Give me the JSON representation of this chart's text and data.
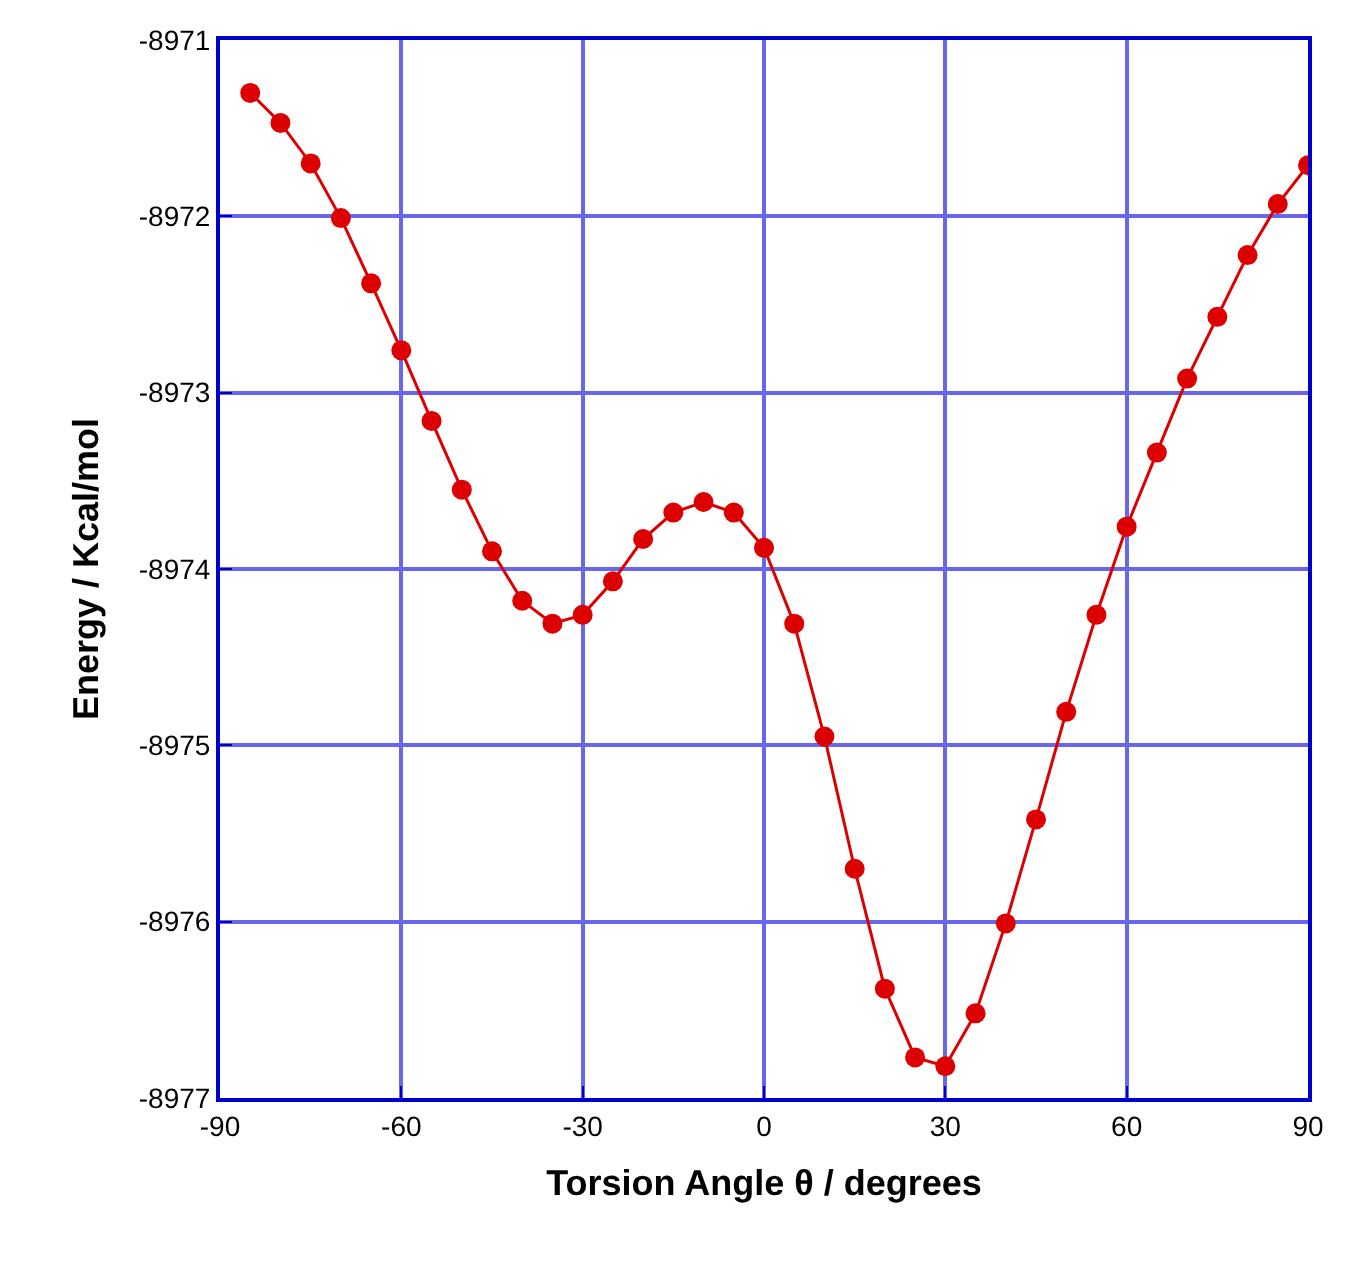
{
  "chart_data": {
    "type": "line",
    "xlabel": "Torsion Angle θ / degrees",
    "ylabel": "Energy / Kcal/mol",
    "x": [
      -85,
      -80,
      -75,
      -70,
      -65,
      -60,
      -55,
      -50,
      -45,
      -40,
      -35,
      -30,
      -25,
      -20,
      -15,
      -10,
      -5,
      0,
      5,
      10,
      15,
      20,
      25,
      30,
      35,
      40,
      45,
      50,
      55,
      60,
      65,
      70,
      75,
      80,
      85,
      90
    ],
    "series": [
      {
        "color": "#dd0000",
        "values": [
          -8971.3,
          -8971.47,
          -8971.7,
          -8972.01,
          -8972.38,
          -8972.76,
          -8973.16,
          -8973.55,
          -8973.9,
          -8974.18,
          -8974.31,
          -8974.26,
          -8974.07,
          -8973.83,
          -8973.68,
          -8973.62,
          -8973.68,
          -8973.88,
          -8974.31,
          -8974.95,
          -8975.7,
          -8976.38,
          -8976.77,
          -8976.82,
          -8976.52,
          -8976.01,
          -8975.42,
          -8974.81,
          -8974.26,
          -8973.76,
          -8973.34,
          -8972.92,
          -8972.57,
          -8972.22,
          -8971.93,
          -8971.71
        ]
      }
    ],
    "xlim": [
      -90,
      90
    ],
    "xticks": [
      -90,
      -60,
      -30,
      0,
      30,
      60,
      90
    ],
    "ylim": [
      -8977,
      -8971
    ],
    "yticks": [
      -8977,
      -8976,
      -8975,
      -8974,
      -8973,
      -8972,
      -8971
    ],
    "grid": true,
    "marker": "circle",
    "line_style": "solid",
    "legend": false
  }
}
